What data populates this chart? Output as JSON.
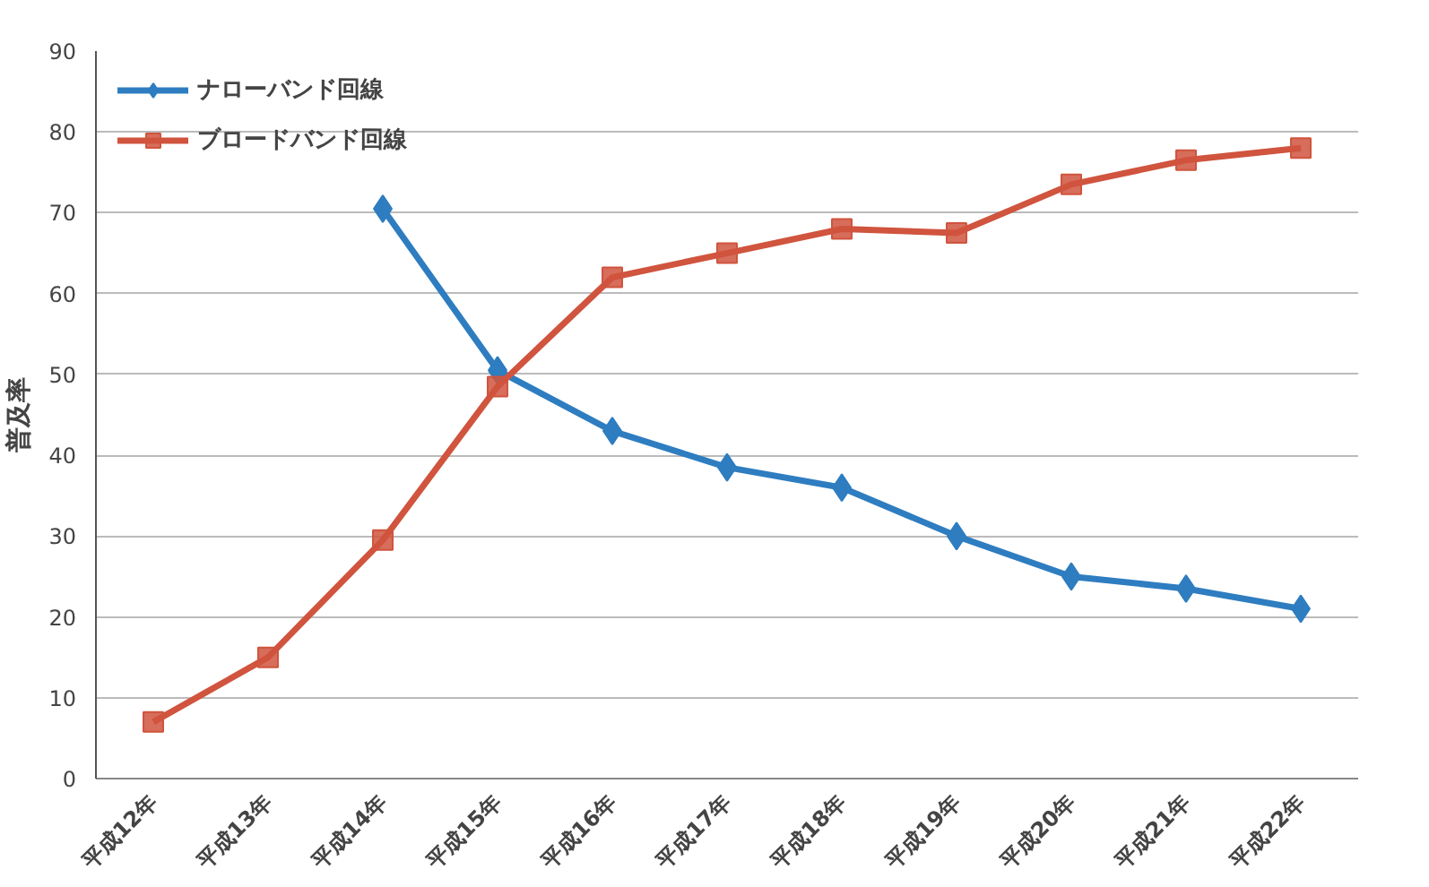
{
  "chart_data": {
    "type": "line",
    "categories": [
      "平成12年",
      "平成13年",
      "平成14年",
      "平成15年",
      "平成16年",
      "平成17年",
      "平成18年",
      "平成19年",
      "平成20年",
      "平成21年",
      "平成22年"
    ],
    "ylabel": "普及率",
    "ylim": [
      0,
      90
    ],
    "yticks": [
      0,
      10,
      20,
      30,
      40,
      50,
      60,
      70,
      80,
      90
    ],
    "grid": "y",
    "legend": "top left",
    "series": [
      {
        "name": "ナローバンド回線",
        "color": "#2e7dc0",
        "marker": "diamond",
        "values": [
          null,
          null,
          70.5,
          50.5,
          43,
          38.5,
          36,
          30,
          25,
          23.5,
          21
        ]
      },
      {
        "name": "ブロードバンド回線",
        "color": "#d0543e",
        "marker": "square",
        "values": [
          7,
          15,
          29.5,
          48.5,
          62,
          65,
          68,
          67.5,
          73.5,
          76.5,
          78
        ]
      }
    ]
  }
}
